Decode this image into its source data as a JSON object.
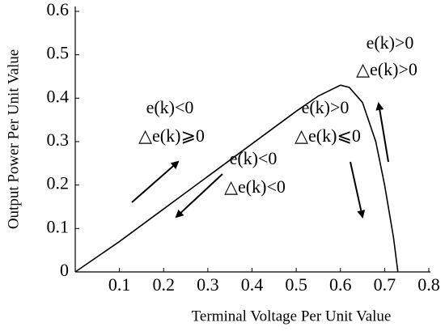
{
  "chart_data": {
    "type": "line",
    "xlabel": "Terminal Voltage Per Unit Value",
    "ylabel": "Output Power Per Unit Value",
    "x": [
      0,
      0.1,
      0.2,
      0.3,
      0.4,
      0.5,
      0.55,
      0.6,
      0.62,
      0.65,
      0.68,
      0.7,
      0.72,
      0.73
    ],
    "values": [
      0,
      0.07,
      0.145,
      0.22,
      0.295,
      0.37,
      0.405,
      0.43,
      0.425,
      0.39,
      0.3,
      0.2,
      0.08,
      0
    ],
    "color": "#000000",
    "xlim": [
      0,
      0.8
    ],
    "xticks": [
      0.1,
      0.2,
      0.3,
      0.4,
      0.5,
      0.6,
      0.7,
      0.8
    ],
    "ylim": [
      0,
      0.6
    ],
    "yticks": [
      0,
      0.1,
      0.2,
      0.3,
      0.4,
      0.5,
      0.6
    ],
    "grid": false,
    "annotations": [
      "e(k)>0",
      "△e(k)>0",
      "e(k)<0",
      "△e(k)⩾0",
      "e(k)>0",
      "△e(k)⩽0",
      "e(k)<0",
      "△e(k)<0"
    ]
  }
}
